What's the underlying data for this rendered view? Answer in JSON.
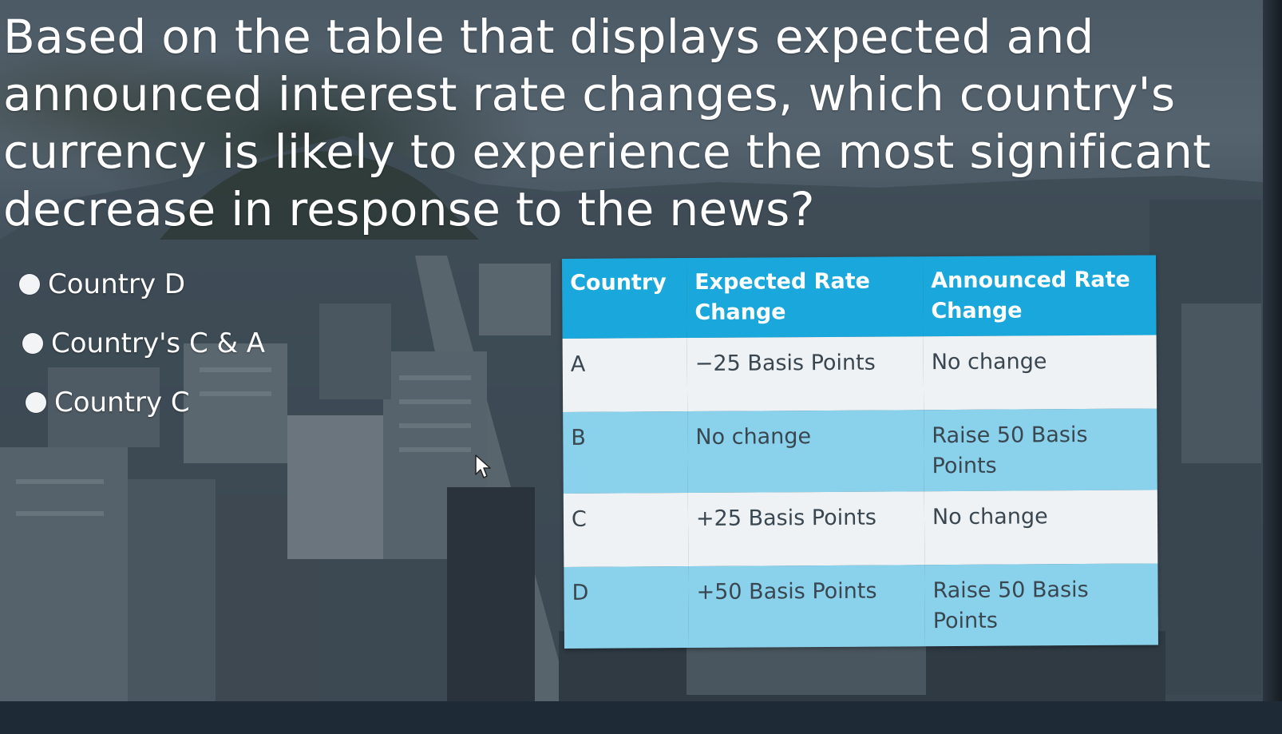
{
  "question": {
    "text": "Based on the table that displays expected and announced interest rate changes, which country's currency is likely to experience the most significant decrease in response to the news?"
  },
  "options": [
    {
      "label": "Country D",
      "selected": false
    },
    {
      "label": "Country's  C & A",
      "selected": false
    },
    {
      "label": "Country C",
      "selected": false
    }
  ],
  "table": {
    "headers": [
      "Country",
      "Expected Rate Change",
      "Announced Rate Change"
    ],
    "rows": [
      {
        "country": "A",
        "expected": "−25 Basis Points",
        "announced": "No change"
      },
      {
        "country": "B",
        "expected": "No change",
        "announced": "Raise 50 Basis Points"
      },
      {
        "country": "C",
        "expected": "+25 Basis Points",
        "announced": "No change"
      },
      {
        "country": "D",
        "expected": "+50 Basis Points",
        "announced": "Raise 50 Basis Points"
      }
    ]
  },
  "colors": {
    "header_blue": "#1aa8dc",
    "row_blue": "#8ad2ec",
    "row_light": "#eef2f4",
    "text_white": "#ffffff",
    "radio_fill": "#f2f4f6"
  },
  "icons": {
    "cursor": "mouse-pointer-icon",
    "radio": "radio-button-icon"
  }
}
